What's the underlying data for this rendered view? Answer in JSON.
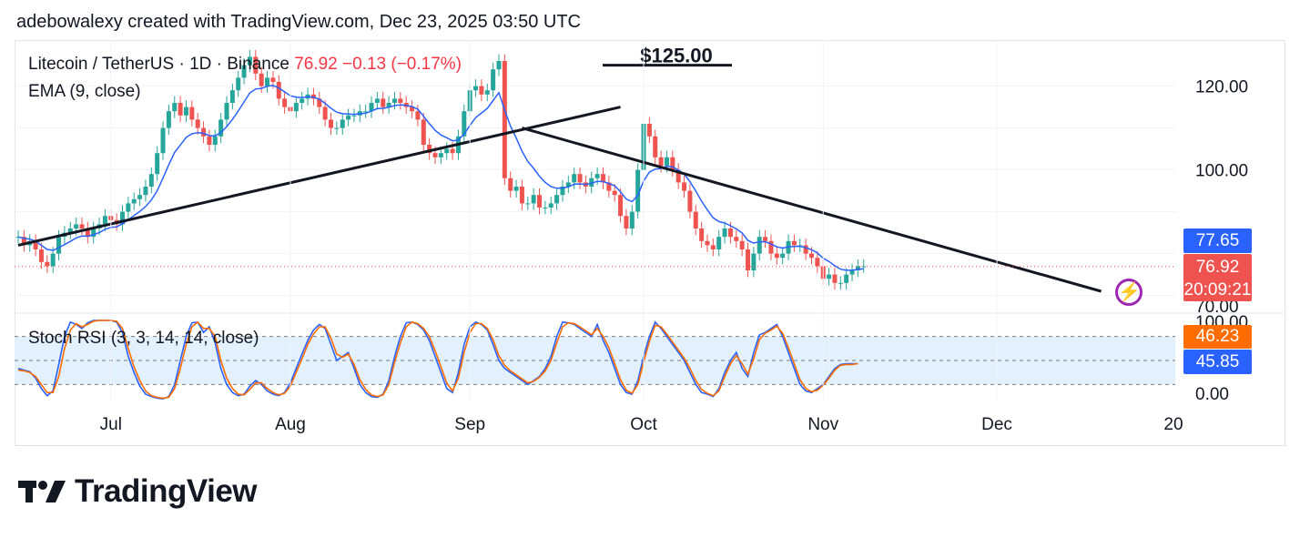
{
  "header": "adebowalexy created with TradingView.com, Dec 23, 2025 03:50 UTC",
  "legend": {
    "symbol": "Litecoin / TetherUS · 1D · Binance",
    "quote": "76.92 −0.13 (−0.17%)",
    "ema": "EMA (9, close)",
    "stoch": "Stoch RSI (3, 3, 14, 14, close)"
  },
  "annotation": "$125.00",
  "tags": {
    "ema_value": "77.65",
    "last_price": "76.92",
    "countdown": "20:09:21",
    "stoch_k": "46.23",
    "stoch_d": "45.85"
  },
  "brand": "TradingView",
  "colors": {
    "up": "#26a69a",
    "down": "#ef5350",
    "ema": "#2962ff",
    "stoch_k": "#2962ff",
    "stoch_d": "#ff6d00",
    "band": "#e3f0fd",
    "ema_tag": "#2962ff",
    "price_tag": "#ef5350",
    "stoch_k_tag": "#ff6d00",
    "stoch_d_tag": "#2962ff"
  },
  "chart_data": [
    {
      "type": "candlestick",
      "price_axis_ticks": [
        "120.00",
        "100.00",
        "70.00"
      ],
      "time_axis_ticks": [
        "Jul",
        "Aug",
        "Sep",
        "Oct",
        "Nov",
        "Dec",
        "20"
      ],
      "x_range": [
        "2025-06-15",
        "2025-12-23"
      ],
      "y_range": [
        66,
        131
      ],
      "close_series": [
        84,
        82,
        83,
        81,
        78,
        77,
        80,
        84,
        85,
        86,
        87,
        86,
        84,
        86,
        87,
        89,
        88,
        87,
        90,
        92,
        93,
        94,
        96,
        99,
        104,
        110,
        114,
        116,
        113,
        115,
        112,
        110,
        108,
        106,
        108,
        112,
        116,
        119,
        122,
        125,
        127,
        123,
        120,
        122,
        121,
        117,
        115,
        114,
        116,
        117,
        118,
        117,
        115,
        112,
        110,
        110,
        112,
        113,
        113,
        114,
        114,
        116,
        117,
        115,
        116,
        117,
        116,
        115,
        114,
        112,
        106,
        104,
        103,
        104,
        105,
        104,
        108,
        114,
        119,
        120,
        118,
        119,
        124,
        126,
        98,
        95,
        96,
        92,
        92,
        94,
        91,
        91,
        92,
        94,
        96,
        97,
        99,
        97,
        96,
        98,
        99,
        97,
        95,
        94,
        89,
        86,
        90,
        100,
        111,
        108,
        103,
        101,
        103,
        100,
        97,
        95,
        90,
        86,
        83,
        82,
        81,
        84,
        86,
        84,
        83,
        81,
        76,
        80,
        84,
        83,
        80,
        79,
        80,
        83,
        82,
        82,
        80,
        79,
        77,
        74,
        75,
        73,
        73,
        75,
        76,
        77,
        77
      ],
      "overlays": {
        "ema9_last": 77.65,
        "support_trendline": [
          [
            "2025-06-15",
            82
          ],
          [
            "2025-09-27",
            115
          ]
        ],
        "resistance_trendline": [
          [
            "2025-09-10",
            110
          ],
          [
            "2025-12-19",
            71
          ]
        ],
        "resistance_level": 125
      }
    },
    {
      "type": "line",
      "title": "Stoch RSI (3, 3, 14, 14, close)",
      "y_axis_ticks": [
        "100.00",
        "0.00"
      ],
      "bands": [
        20,
        50,
        80
      ],
      "series": [
        {
          "name": "%K",
          "values": [
            40,
            38,
            36,
            28,
            15,
            6,
            12,
            45,
            80,
            98,
            95,
            90,
            97,
            100,
            100,
            100,
            100,
            98,
            85,
            55,
            35,
            18,
            8,
            5,
            3,
            2,
            5,
            20,
            50,
            80,
            97,
            98,
            85,
            92,
            72,
            40,
            20,
            10,
            6,
            8,
            18,
            25,
            20,
            12,
            8,
            6,
            10,
            22,
            40,
            58,
            75,
            88,
            95,
            90,
            70,
            50,
            55,
            60,
            40,
            20,
            10,
            5,
            4,
            8,
            25,
            55,
            80,
            97,
            98,
            95,
            88,
            75,
            55,
            35,
            15,
            10,
            35,
            70,
            92,
            98,
            95,
            88,
            70,
            50,
            40,
            35,
            30,
            25,
            20,
            25,
            30,
            40,
            55,
            80,
            98,
            97,
            95,
            90,
            85,
            80,
            95,
            75,
            60,
            40,
            20,
            10,
            8,
            25,
            55,
            80,
            98,
            90,
            80,
            70,
            60,
            50,
            35,
            20,
            10,
            8,
            5,
            15,
            35,
            50,
            60,
            40,
            30,
            60,
            82,
            85,
            90,
            95,
            80,
            60,
            40,
            20,
            12,
            10,
            15,
            20,
            30,
            40,
            45,
            46,
            46,
            46
          ]
        },
        {
          "name": "%D",
          "values": [
            38,
            37,
            35,
            30,
            20,
            10,
            10,
            30,
            65,
            88,
            96,
            92,
            95,
            99,
            100,
            100,
            100,
            99,
            90,
            65,
            42,
            25,
            12,
            6,
            4,
            3,
            4,
            15,
            40,
            70,
            92,
            98,
            90,
            90,
            80,
            50,
            28,
            15,
            8,
            7,
            14,
            22,
            22,
            15,
            10,
            7,
            9,
            18,
            35,
            52,
            70,
            83,
            92,
            92,
            78,
            58,
            54,
            58,
            45,
            26,
            14,
            7,
            5,
            7,
            20,
            48,
            72,
            92,
            98,
            96,
            90,
            80,
            62,
            42,
            22,
            12,
            28,
            60,
            85,
            96,
            96,
            90,
            76,
            56,
            44,
            37,
            32,
            27,
            22,
            24,
            29,
            37,
            50,
            72,
            92,
            97,
            96,
            92,
            87,
            82,
            90,
            80,
            66,
            46,
            26,
            13,
            9,
            20,
            48,
            74,
            94,
            92,
            83,
            73,
            63,
            53,
            40,
            25,
            14,
            9,
            6,
            12,
            30,
            46,
            56,
            46,
            33,
            52,
            76,
            84,
            88,
            93,
            84,
            66,
            46,
            26,
            15,
            11,
            13,
            19,
            28,
            38,
            44,
            45,
            45,
            46
          ]
        }
      ]
    }
  ]
}
